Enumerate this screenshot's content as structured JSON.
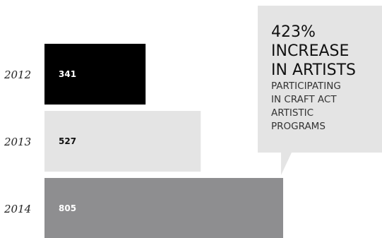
{
  "chart_data": {
    "type": "bar",
    "orientation": "horizontal",
    "categories": [
      "2012",
      "2013",
      "2014"
    ],
    "values": [
      341,
      527,
      805
    ],
    "value_labels": [
      "341",
      "527",
      "805"
    ],
    "bar_colors": [
      "#000000",
      "#e4e4e4",
      "#8e8e90"
    ],
    "label_colors": [
      "#ffffff",
      "#111111",
      "#ffffff"
    ],
    "title": "",
    "xlabel": "",
    "ylabel": "",
    "xlim": [
      0,
      805
    ],
    "grid": false,
    "legend": "none"
  },
  "callout": {
    "headline_lines": [
      "423%",
      "INCREASE",
      "IN ARTISTS"
    ],
    "sub_lines": [
      "PARTICIPATING",
      "IN CRAFT ACT",
      "ARTISTIC",
      "PROGRAMS"
    ],
    "background": "#e4e4e4"
  }
}
